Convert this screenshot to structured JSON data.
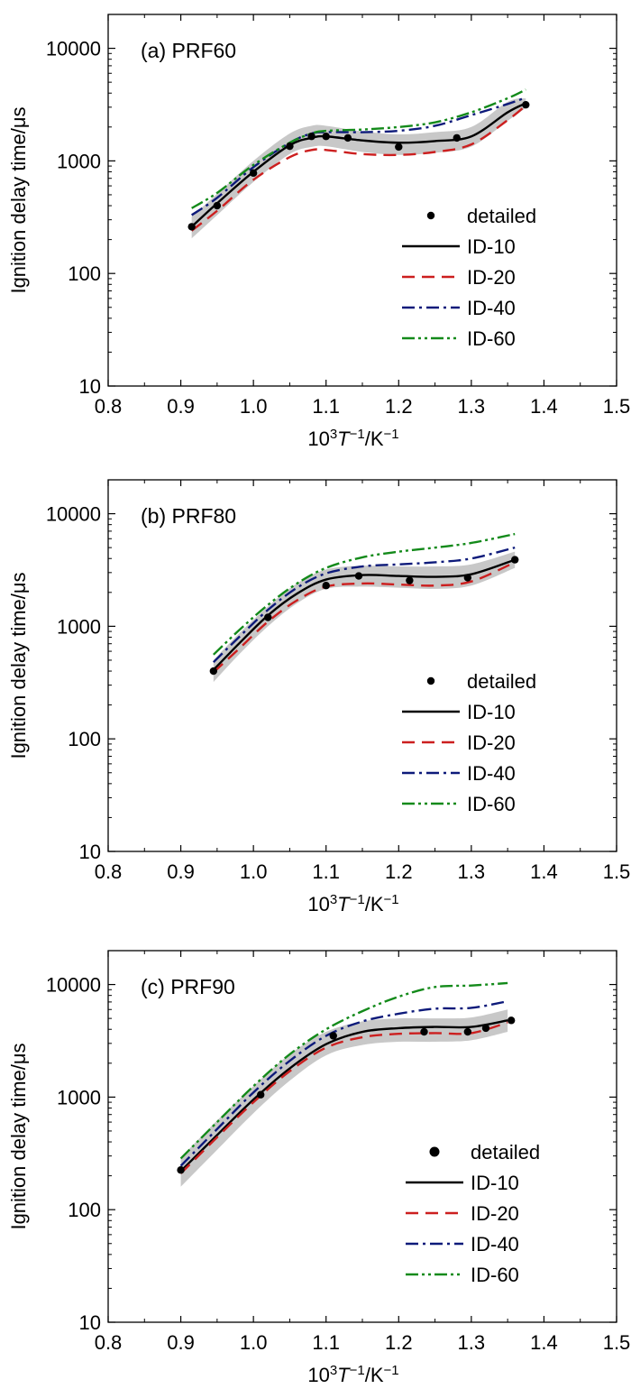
{
  "figure": {
    "ylabel": "Ignition delay time/μs",
    "xlabel": {
      "prefix": "10",
      "sup1": "3",
      "T": "T",
      "sup2": "−1",
      "unit": "/K",
      "sup3": "−1"
    }
  },
  "legend_labels": [
    "detailed",
    "ID-10",
    "ID-20",
    "ID-40",
    "ID-60"
  ],
  "colors": {
    "detailed": "#000000",
    "ID-10": "#000000",
    "ID-20": "#cc1f1f",
    "ID-40": "#0d1a7a",
    "ID-60": "#138a1a",
    "band": "#c8c8c8"
  },
  "chart_data": [
    {
      "type": "line",
      "panel_label": "(a) PRF60",
      "x_ticks": [
        "0.8",
        "0.9",
        "1.0",
        "1.1",
        "1.2",
        "1.3",
        "1.4",
        "1.5"
      ],
      "y_ticks": [
        "10",
        "100",
        "1000",
        "10000"
      ],
      "xlim": [
        0.8,
        1.5
      ],
      "ylim": [
        10,
        20000
      ],
      "log_y": true,
      "band": {
        "x": [
          0.915,
          0.95,
          1.0,
          1.05,
          1.08,
          1.1,
          1.15,
          1.2,
          1.25,
          1.3,
          1.35,
          1.375
        ],
        "lower": [
          205,
          330,
          650,
          1150,
          1330,
          1350,
          1200,
          1130,
          1180,
          1340,
          2270,
          2950
        ],
        "upper": [
          320,
          510,
          1000,
          1750,
          2050,
          2050,
          1830,
          1720,
          1800,
          2000,
          3350,
          3600
        ]
      },
      "detailed": {
        "x": [
          0.915,
          0.95,
          1.0,
          1.05,
          1.08,
          1.1,
          1.13,
          1.2,
          1.28,
          1.375
        ],
        "y": [
          260,
          400,
          780,
          1350,
          1650,
          1650,
          1600,
          1330,
          1600,
          3150
        ]
      },
      "series": [
        {
          "name": "ID-10",
          "x": [
            0.915,
            0.95,
            1.0,
            1.05,
            1.08,
            1.1,
            1.15,
            1.2,
            1.25,
            1.3,
            1.35,
            1.375
          ],
          "y": [
            260,
            420,
            800,
            1380,
            1600,
            1650,
            1520,
            1450,
            1500,
            1650,
            2700,
            3250
          ]
        },
        {
          "name": "ID-20",
          "x": [
            0.915,
            0.95,
            1.0,
            1.05,
            1.08,
            1.1,
            1.15,
            1.2,
            1.25,
            1.3,
            1.35,
            1.375
          ],
          "y": [
            240,
            360,
            680,
            1080,
            1250,
            1250,
            1150,
            1130,
            1200,
            1400,
            2300,
            3100
          ]
        },
        {
          "name": "ID-40",
          "x": [
            0.915,
            0.95,
            1.0,
            1.05,
            1.08,
            1.1,
            1.15,
            1.2,
            1.25,
            1.3,
            1.35,
            1.375
          ],
          "y": [
            330,
            470,
            880,
            1450,
            1750,
            1800,
            1800,
            1850,
            2050,
            2550,
            3200,
            3650
          ]
        },
        {
          "name": "ID-60",
          "x": [
            0.915,
            0.95,
            1.0,
            1.05,
            1.08,
            1.1,
            1.15,
            1.2,
            1.25,
            1.3,
            1.35,
            1.375
          ],
          "y": [
            380,
            520,
            920,
            1450,
            1750,
            1850,
            1900,
            2000,
            2200,
            2700,
            3600,
            4300
          ]
        }
      ]
    },
    {
      "type": "line",
      "panel_label": "(b) PRF80",
      "x_ticks": [
        "0.8",
        "0.9",
        "1.0",
        "1.1",
        "1.2",
        "1.3",
        "1.4",
        "1.5"
      ],
      "y_ticks": [
        "10",
        "100",
        "1000",
        "10000"
      ],
      "xlim": [
        0.8,
        1.5
      ],
      "ylim": [
        10,
        20000
      ],
      "log_y": true,
      "band": {
        "x": [
          0.945,
          0.98,
          1.02,
          1.06,
          1.1,
          1.15,
          1.2,
          1.25,
          1.3,
          1.36
        ],
        "lower": [
          320,
          560,
          1000,
          1600,
          2150,
          2250,
          2200,
          2150,
          2300,
          3300
        ],
        "upper": [
          500,
          860,
          1500,
          2400,
          3200,
          3450,
          3400,
          3400,
          3550,
          4600
        ]
      },
      "detailed": {
        "x": [
          0.945,
          1.02,
          1.1,
          1.145,
          1.215,
          1.295,
          1.36
        ],
        "y": [
          400,
          1200,
          2300,
          2800,
          2550,
          2700,
          3900
        ]
      },
      "series": [
        {
          "name": "ID-10",
          "x": [
            0.945,
            0.98,
            1.02,
            1.06,
            1.1,
            1.15,
            1.2,
            1.25,
            1.3,
            1.36
          ],
          "y": [
            410,
            700,
            1250,
            1950,
            2600,
            2850,
            2800,
            2750,
            2900,
            3900
          ]
        },
        {
          "name": "ID-20",
          "x": [
            0.945,
            0.98,
            1.02,
            1.06,
            1.1,
            1.15,
            1.2,
            1.25,
            1.3,
            1.36
          ],
          "y": [
            390,
            630,
            1100,
            1700,
            2250,
            2400,
            2350,
            2300,
            2500,
            3700
          ]
        },
        {
          "name": "ID-40",
          "x": [
            0.945,
            0.98,
            1.02,
            1.06,
            1.1,
            1.15,
            1.2,
            1.25,
            1.3,
            1.36
          ],
          "y": [
            480,
            800,
            1400,
            2200,
            2950,
            3400,
            3550,
            3700,
            4000,
            5000
          ]
        },
        {
          "name": "ID-60",
          "x": [
            0.945,
            0.98,
            1.02,
            1.06,
            1.1,
            1.15,
            1.2,
            1.25,
            1.3,
            1.36
          ],
          "y": [
            560,
            920,
            1550,
            2400,
            3300,
            4100,
            4600,
            5000,
            5500,
            6600
          ]
        }
      ]
    },
    {
      "type": "line",
      "panel_label": "(c) PRF90",
      "x_ticks": [
        "0.8",
        "0.9",
        "1.0",
        "1.1",
        "1.2",
        "1.3",
        "1.4",
        "1.5"
      ],
      "y_ticks": [
        "10",
        "100",
        "1000",
        "10000"
      ],
      "xlim": [
        0.8,
        1.5
      ],
      "ylim": [
        10,
        20000
      ],
      "log_y": true,
      "band": {
        "x": [
          0.9,
          0.95,
          1.0,
          1.05,
          1.1,
          1.15,
          1.2,
          1.25,
          1.3,
          1.35
        ],
        "lower": [
          160,
          340,
          720,
          1400,
          2350,
          2900,
          3100,
          3100,
          3200,
          3800
        ],
        "upper": [
          290,
          620,
          1250,
          2400,
          3800,
          4700,
          5000,
          5000,
          5100,
          6000
        ]
      },
      "detailed": {
        "x": [
          0.9,
          1.01,
          1.11,
          1.235,
          1.295,
          1.32,
          1.355
        ],
        "y": [
          225,
          1050,
          3500,
          3800,
          3800,
          4100,
          4800
        ]
      },
      "series": [
        {
          "name": "ID-10",
          "x": [
            0.9,
            0.95,
            1.0,
            1.05,
            1.1,
            1.15,
            1.2,
            1.25,
            1.3,
            1.35
          ],
          "y": [
            220,
            460,
            950,
            1800,
            2950,
            3800,
            4100,
            4200,
            4200,
            4800
          ]
        },
        {
          "name": "ID-20",
          "x": [
            0.9,
            0.95,
            1.0,
            1.05,
            1.1,
            1.15,
            1.2,
            1.25,
            1.3,
            1.35
          ],
          "y": [
            210,
            440,
            900,
            1700,
            2750,
            3400,
            3650,
            3700,
            3700,
            4600
          ]
        },
        {
          "name": "ID-40",
          "x": [
            0.9,
            0.95,
            1.0,
            1.05,
            1.1,
            1.15,
            1.2,
            1.25,
            1.3,
            1.35
          ],
          "y": [
            245,
            520,
            1100,
            2100,
            3500,
            4700,
            5500,
            6100,
            6200,
            7100
          ]
        },
        {
          "name": "ID-60",
          "x": [
            0.9,
            0.95,
            1.0,
            1.05,
            1.1,
            1.15,
            1.2,
            1.25,
            1.3,
            1.35
          ],
          "y": [
            285,
            600,
            1250,
            2400,
            4000,
            5800,
            7800,
            9500,
            9800,
            10300
          ]
        }
      ]
    }
  ]
}
